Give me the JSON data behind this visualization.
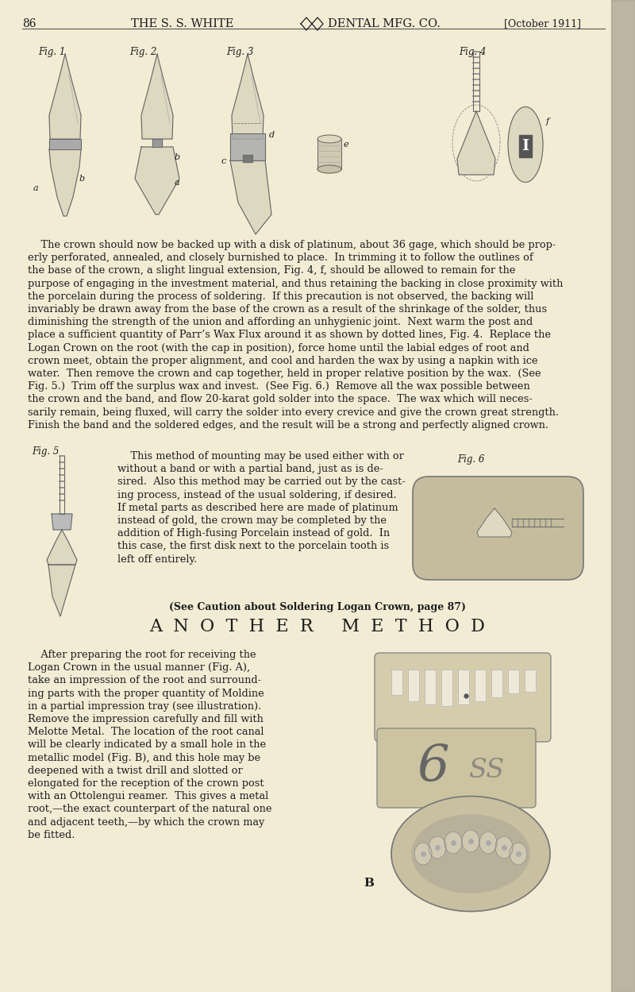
{
  "page_bg_color": "#f2ecd5",
  "page_number": "86",
  "header_center": "THE S. S. WHITE",
  "header_right": "DENTAL MFG. CO.",
  "header_date": "[October 1911]",
  "fig_label_1": "Fig. 1",
  "fig_label_2": "Fig. 2",
  "fig_label_3": "Fig. 3",
  "fig_label_4": "Fig. 4",
  "fig_label_5": "Fig. 5",
  "fig_label_6": "Fig. 6",
  "caution_text": "(See Caution about Soldering Logan Crown, page 87)",
  "section_title": "ANOTHER METHOD",
  "body1": "    The crown should now be backed up with a disk of platinum, about 36 gage, which should be prop-\nerly perforated, annealed, and closely burnished to place.  In trimming it to follow the outlines of\nthe base of the crown, a slight lingual extension, Fig. 4, f, should be allowed to remain for the\npurpose of engaging in the investment material, and thus retaining the backing in close proximity with\nthe porcelain during the process of soldering.  If this precaution is not observed, the backing will\ninvariably be drawn away from the base of the crown as a result of the shrinkage of the solder, thus\ndiminishing the strength of the union and affording an unhygienic joint.  Next warm the post and\nplace a sufficient quantity of Parr’s Wax Flux around it as shown by dotted lines, Fig. 4.  Replace the\nLogan Crown on the root (with the cap in position), force home until the labial edges of root and\ncrown meet, obtain the proper alignment, and cool and harden the wax by using a napkin with ice\nwater.  Then remove the crown and cap together, held in proper relative position by the wax.  (See\nFig. 5.)  Trim off the surplus wax and invest.  (See Fig. 6.)  Remove all the wax possible between\nthe crown and the band, and flow 20-karat gold solder into the space.  The wax which will neces-\nsarily remain, being fluxed, will carry the solder into every crevice and give the crown great strength.\nFinish the band and the soldered edges, and the result will be a strong and perfectly aligned crown.",
  "body_fig5": "    This method of mounting may be used either with or\nwithout a band or with a partial band, just as is de-\nsired.  Also this method may be carried out by the cast-\ning process, instead of the usual soldering, if desired.\nIf metal parts as described here are made of platinum\ninstead of gold, the crown may be completed by the\naddition of High-fusing Porcelain instead of gold.  In\nthis case, the first disk next to the porcelain tooth is\nleft off entirely.",
  "body2": "    After preparing the root for receiving the\nLogan Crown in the usual manner (Fig. A),\ntake an impression of the root and surround-\ning parts with the proper quantity of Moldine\nin a partial impression tray (see illustration).\nRemove the impression carefully and fill with\nMelotte Metal.  The location of the root canal\nwill be clearly indicated by a small hole in the\nmetallic model (Fig. B), and this hole may be\ndeepened with a twist drill and slotted or\nelongated for the reception of the crown post\nwith an Ottolengui reamer.  This gives a metal\nroot,—the exact counterpart of the natural one\nand adjacent teeth,—by which the crown may\nbe fitted.",
  "text_color": "#1c1c1c",
  "tooth_fill": "#ddd8c0",
  "tooth_edge": "#666666",
  "band_color": "#aaaaaa",
  "blob_color": "#c4bc9c"
}
